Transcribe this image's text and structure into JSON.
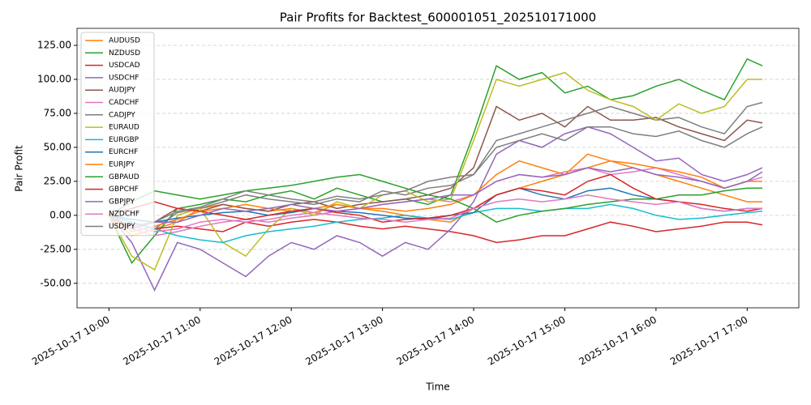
{
  "chart_data": {
    "type": "line",
    "title": "Pair Profits for Backtest_600001051_202510171000",
    "xlabel": "Time",
    "ylabel": "Pair Profit",
    "x": [
      "2025-10-17 10:00",
      "2025-10-17 10:15",
      "2025-10-17 10:30",
      "2025-10-17 10:45",
      "2025-10-17 11:00",
      "2025-10-17 11:15",
      "2025-10-17 11:30",
      "2025-10-17 11:45",
      "2025-10-17 12:00",
      "2025-10-17 12:15",
      "2025-10-17 12:30",
      "2025-10-17 12:45",
      "2025-10-17 13:00",
      "2025-10-17 13:15",
      "2025-10-17 13:30",
      "2025-10-17 13:45",
      "2025-10-17 14:00",
      "2025-10-17 14:15",
      "2025-10-17 14:30",
      "2025-10-17 14:45",
      "2025-10-17 15:00",
      "2025-10-17 15:15",
      "2025-10-17 15:30",
      "2025-10-17 15:45",
      "2025-10-17 16:00",
      "2025-10-17 16:15",
      "2025-10-17 16:30",
      "2025-10-17 16:45",
      "2025-10-17 17:00",
      "2025-10-17 17:10"
    ],
    "xlim": [
      "2025-10-17 09:39",
      "2025-10-17 17:34"
    ],
    "xticks": [
      "2025-10-17 10:00",
      "2025-10-17 11:00",
      "2025-10-17 12:00",
      "2025-10-17 13:00",
      "2025-10-17 14:00",
      "2025-10-17 15:00",
      "2025-10-17 16:00",
      "2025-10-17 17:00"
    ],
    "ylim": [
      -68,
      137.5
    ],
    "yticks": [
      {
        "value": -50,
        "label": "-50.00"
      },
      {
        "value": -25,
        "label": "-25.00"
      },
      {
        "value": 0,
        "label": "0.00"
      },
      {
        "value": 25,
        "label": "25.00"
      },
      {
        "value": 50,
        "label": "50.00"
      },
      {
        "value": 75,
        "label": "75.00"
      },
      {
        "value": 100,
        "label": "100.00"
      },
      {
        "value": 125,
        "label": "125.00"
      }
    ],
    "grid": true,
    "legend": "upper left",
    "series": [
      {
        "name": "AUDUSD",
        "color": "#ff7f0e",
        "values": [
          0,
          -15,
          -10,
          -5,
          5,
          8,
          5,
          3,
          5,
          2,
          8,
          5,
          3,
          0,
          -3,
          -5,
          5,
          15,
          20,
          25,
          30,
          35,
          40,
          35,
          30,
          25,
          20,
          15,
          10,
          10
        ]
      },
      {
        "name": "NZDUSD",
        "color": "#2ca02c",
        "values": [
          0,
          -35,
          -15,
          5,
          8,
          12,
          10,
          15,
          18,
          12,
          20,
          15,
          10,
          12,
          8,
          15,
          60,
          110,
          100,
          105,
          90,
          95,
          85,
          88,
          95,
          100,
          92,
          85,
          115,
          110
        ]
      },
      {
        "name": "USDCAD",
        "color": "#d62728",
        "values": [
          0,
          -5,
          -10,
          -8,
          -10,
          -12,
          -5,
          -8,
          -5,
          -3,
          -5,
          -8,
          -10,
          -8,
          -10,
          -12,
          -15,
          -20,
          -18,
          -15,
          -15,
          -10,
          -5,
          -8,
          -12,
          -10,
          -8,
          -5,
          -5,
          -7
        ]
      },
      {
        "name": "USDCHF",
        "color": "#9467bd",
        "values": [
          0,
          -20,
          -55,
          -20,
          -25,
          -35,
          -45,
          -30,
          -20,
          -25,
          -15,
          -20,
          -30,
          -20,
          -25,
          -10,
          10,
          45,
          55,
          50,
          60,
          65,
          60,
          50,
          40,
          42,
          30,
          25,
          30,
          35
        ]
      },
      {
        "name": "AUDJPY",
        "color": "#8c564b",
        "values": [
          0,
          -10,
          -5,
          5,
          3,
          8,
          5,
          3,
          8,
          10,
          5,
          8,
          10,
          12,
          15,
          20,
          35,
          80,
          70,
          75,
          65,
          80,
          70,
          70,
          72,
          65,
          60,
          55,
          70,
          68
        ]
      },
      {
        "name": "CADCHF",
        "color": "#e377c2",
        "values": [
          0,
          -10,
          -15,
          -12,
          -8,
          -5,
          -3,
          -5,
          -2,
          0,
          3,
          5,
          8,
          10,
          12,
          10,
          15,
          25,
          30,
          28,
          32,
          35,
          30,
          32,
          35,
          30,
          25,
          20,
          25,
          28
        ]
      },
      {
        "name": "CADJPY",
        "color": "#7f7f7f",
        "values": [
          0,
          -5,
          -10,
          2,
          5,
          10,
          15,
          12,
          10,
          8,
          12,
          10,
          18,
          15,
          20,
          22,
          30,
          55,
          60,
          65,
          70,
          75,
          80,
          75,
          70,
          72,
          65,
          60,
          80,
          83
        ]
      },
      {
        "name": "EURAUD",
        "color": "#bcbd22",
        "values": [
          0,
          -30,
          -40,
          0,
          5,
          -20,
          -30,
          -10,
          5,
          0,
          10,
          5,
          15,
          18,
          10,
          12,
          55,
          100,
          95,
          100,
          105,
          92,
          85,
          80,
          70,
          82,
          75,
          80,
          100,
          100
        ]
      },
      {
        "name": "EURGBP",
        "color": "#17becf",
        "values": [
          0,
          -5,
          -10,
          -15,
          -18,
          -20,
          -15,
          -12,
          -10,
          -8,
          -5,
          -3,
          -2,
          0,
          -2,
          -3,
          2,
          5,
          5,
          3,
          5,
          5,
          8,
          5,
          0,
          -3,
          -2,
          0,
          2,
          3
        ]
      },
      {
        "name": "EURCHF",
        "color": "#1f77b4",
        "values": [
          0,
          -3,
          -5,
          -2,
          0,
          2,
          3,
          0,
          2,
          5,
          3,
          2,
          0,
          -2,
          -3,
          0,
          2,
          15,
          20,
          15,
          12,
          18,
          20,
          15,
          12,
          10,
          5,
          3,
          5,
          5
        ]
      },
      {
        "name": "EURJPY",
        "color": "#ff7f0e",
        "values": [
          0,
          -12,
          -8,
          -3,
          3,
          5,
          8,
          5,
          3,
          5,
          8,
          5,
          5,
          3,
          5,
          8,
          15,
          30,
          40,
          35,
          30,
          45,
          40,
          38,
          35,
          32,
          28,
          20,
          25,
          25
        ]
      },
      {
        "name": "GBPAUD",
        "color": "#2ca02c",
        "values": [
          0,
          10,
          18,
          15,
          12,
          15,
          18,
          20,
          22,
          25,
          28,
          30,
          25,
          20,
          15,
          12,
          5,
          -5,
          0,
          3,
          5,
          8,
          10,
          12,
          12,
          15,
          15,
          18,
          20,
          20
        ]
      },
      {
        "name": "GBPCHF",
        "color": "#d62728",
        "values": [
          0,
          5,
          10,
          5,
          3,
          0,
          -3,
          0,
          3,
          5,
          2,
          0,
          -5,
          -3,
          -2,
          0,
          5,
          15,
          20,
          18,
          15,
          25,
          30,
          20,
          12,
          10,
          8,
          5,
          3,
          5
        ]
      },
      {
        "name": "GBPJPY",
        "color": "#9467bd",
        "values": [
          0,
          -10,
          -5,
          -5,
          0,
          5,
          3,
          5,
          8,
          5,
          3,
          5,
          8,
          10,
          12,
          15,
          15,
          25,
          30,
          28,
          30,
          35,
          32,
          35,
          30,
          28,
          25,
          20,
          25,
          32
        ]
      },
      {
        "name": "NZDCHF",
        "color": "#e377c2",
        "values": [
          0,
          -8,
          -12,
          -10,
          -5,
          -3,
          -5,
          -3,
          0,
          2,
          0,
          -2,
          -3,
          -5,
          -3,
          -2,
          5,
          10,
          12,
          10,
          12,
          15,
          12,
          10,
          8,
          10,
          5,
          3,
          5,
          5
        ]
      },
      {
        "name": "USDJPY",
        "color": "#7f7f7f",
        "values": [
          0,
          -8,
          -5,
          3,
          6,
          12,
          18,
          15,
          12,
          10,
          14,
          12,
          15,
          18,
          25,
          28,
          30,
          50,
          55,
          60,
          55,
          65,
          65,
          60,
          58,
          62,
          55,
          50,
          60,
          65
        ]
      }
    ]
  }
}
